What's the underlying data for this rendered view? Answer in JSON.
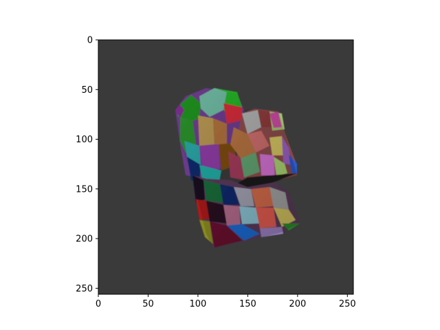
{
  "figure": {
    "background_color": "#ffffff",
    "image_background_color": "#3a3a3a",
    "axes_color": "#000000"
  },
  "image": {
    "description_kind": "voronoi-textured-shape",
    "pixel_extent": [
      0,
      256
    ]
  },
  "axes": {
    "x_ticks": [
      "0",
      "50",
      "100",
      "150",
      "200",
      "250"
    ],
    "y_ticks": [
      "0",
      "50",
      "100",
      "150",
      "200",
      "250"
    ],
    "x_tick_values": [
      0,
      50,
      100,
      150,
      200,
      250
    ],
    "y_tick_values": [
      0,
      50,
      100,
      150,
      200,
      250
    ],
    "xlim": [
      0,
      256
    ],
    "ylim": [
      256,
      0
    ]
  }
}
